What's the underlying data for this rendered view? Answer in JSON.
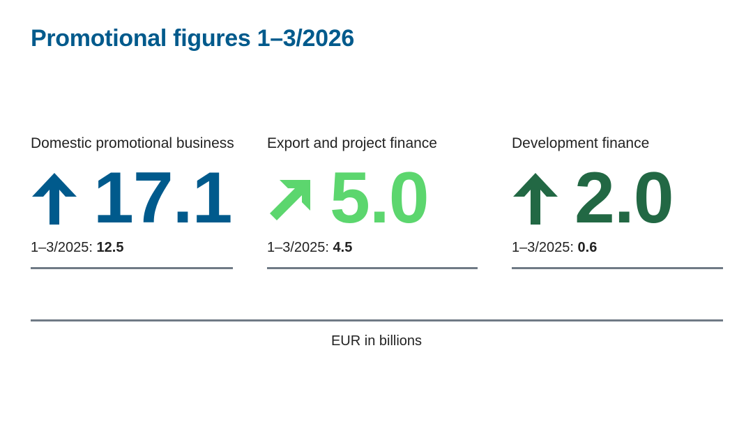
{
  "title": "Promotional figures 1–3/2026",
  "kpis": [
    {
      "label": "Domestic promotional business",
      "value": "17.1",
      "arrow_icon": "arrow-up-icon",
      "color": "#005a8c",
      "prev_label": "1–3/2025:",
      "prev_value": "12.5"
    },
    {
      "label": "Export and project finance",
      "value": "5.0",
      "arrow_icon": "arrow-up-right-icon",
      "color": "#5cd66e",
      "prev_label": "1–3/2025:",
      "prev_value": "4.5"
    },
    {
      "label": "Development finance",
      "value": "2.0",
      "arrow_icon": "arrow-up-icon",
      "color": "#226844",
      "prev_label": "1–3/2025:",
      "prev_value": "0.6"
    }
  ],
  "footnote": "EUR in billions",
  "colors": {
    "title": "#005a8c",
    "rule": "#6f7a85"
  }
}
